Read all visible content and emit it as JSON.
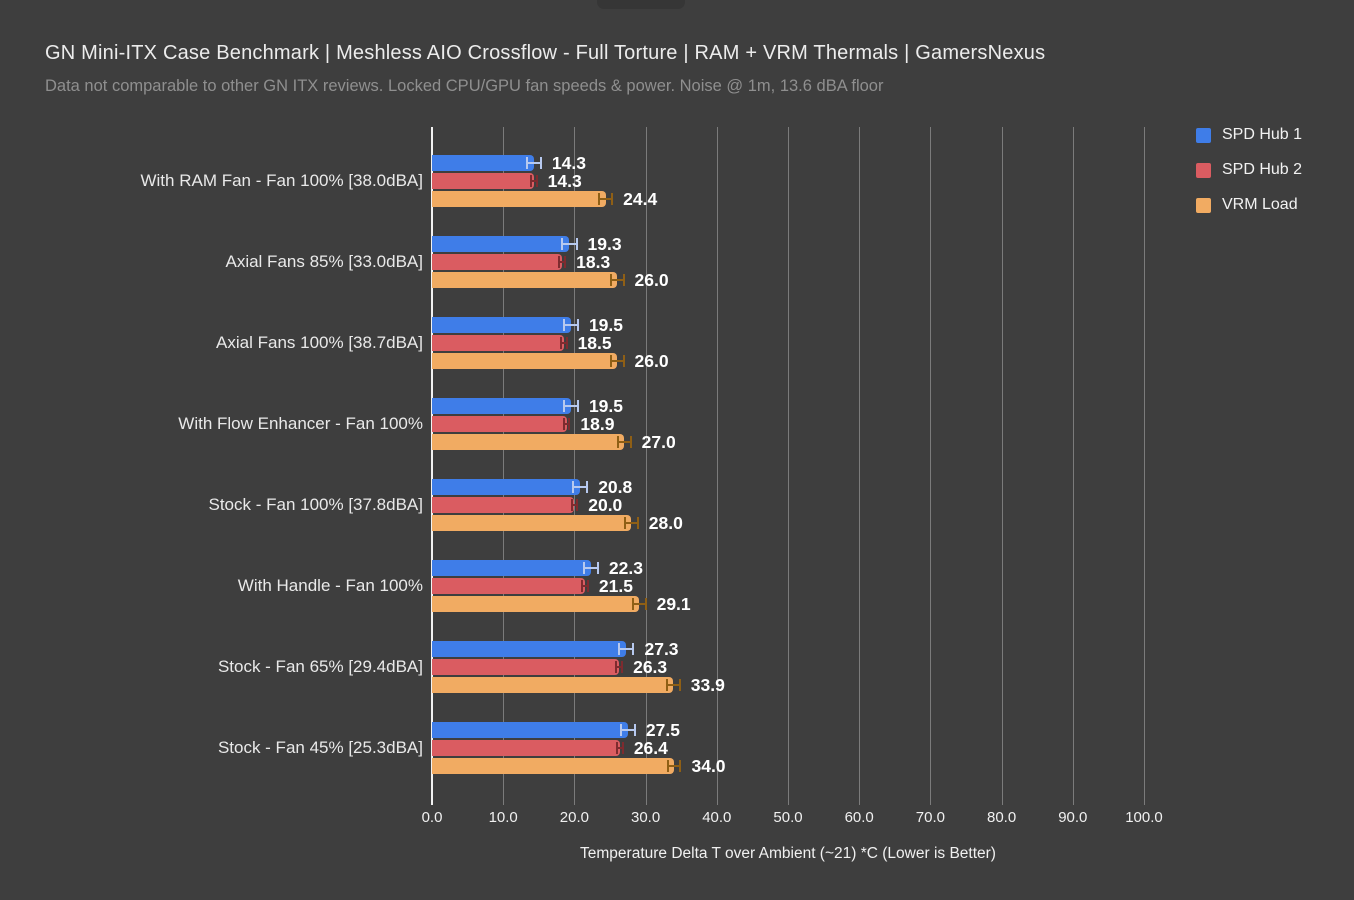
{
  "page": {
    "background_color": "#3e3e3e",
    "grid_color": "#7b7b7b",
    "zero_axis_color": "#f2f2f2",
    "text_color": "#f0f0f0"
  },
  "header": {
    "title": "GN Mini-ITX Case Benchmark | Meshless AIO Crossflow - Full Torture | RAM + VRM Thermals | GamersNexus",
    "subtitle": "Data not comparable to other GN ITX reviews. Locked CPU/GPU fan speeds & power. Noise @ 1m, 13.6 dBA floor"
  },
  "chart_data": {
    "type": "bar",
    "orientation": "horizontal",
    "title": "GN Mini-ITX Case Benchmark | Meshless AIO Crossflow - Full Torture | RAM + VRM Thermals | GamersNexus",
    "subtitle": "Data not comparable to other GN ITX reviews. Locked CPU/GPU fan speeds & power. Noise @ 1m, 13.6 dBA floor",
    "xlabel": "Temperature Delta T over Ambient (~21) *C (Lower is Better)",
    "xlim": [
      0,
      100
    ],
    "x_ticks": [
      "0.0",
      "10.0",
      "20.0",
      "30.0",
      "40.0",
      "50.0",
      "60.0",
      "70.0",
      "80.0",
      "90.0",
      "100.0"
    ],
    "grid": true,
    "legend_position": "top-right",
    "value_label_decimals": 1,
    "categories": [
      "With RAM Fan - Fan 100% [38.0dBA]",
      "Axial Fans 85% [33.0dBA]",
      "Axial Fans 100% [38.7dBA]",
      "With Flow Enhancer - Fan 100%",
      "Stock - Fan 100% [37.8dBA]",
      "With Handle - Fan 100%",
      "Stock - Fan 65% [29.4dBA]",
      "Stock - Fan 45% [25.3dBA]"
    ],
    "series": [
      {
        "name": "SPD Hub 1",
        "color": "#3f7de8",
        "error_color": "#b7c9ef",
        "error_estimate": 1.0,
        "values": [
          14.3,
          19.3,
          19.5,
          19.5,
          20.8,
          22.3,
          27.3,
          27.5
        ]
      },
      {
        "name": "SPD Hub 2",
        "color": "#da5c61",
        "error_color": "#7e2b2f",
        "error_estimate": 0.4,
        "values": [
          14.3,
          18.3,
          18.5,
          18.9,
          20.0,
          21.5,
          26.3,
          26.4
        ]
      },
      {
        "name": "VRM Load",
        "color": "#f1ab62",
        "error_color": "#8f5f15",
        "error_estimate": 0.9,
        "values": [
          24.4,
          26.0,
          26.0,
          27.0,
          28.0,
          29.1,
          33.9,
          34.0
        ]
      }
    ]
  }
}
